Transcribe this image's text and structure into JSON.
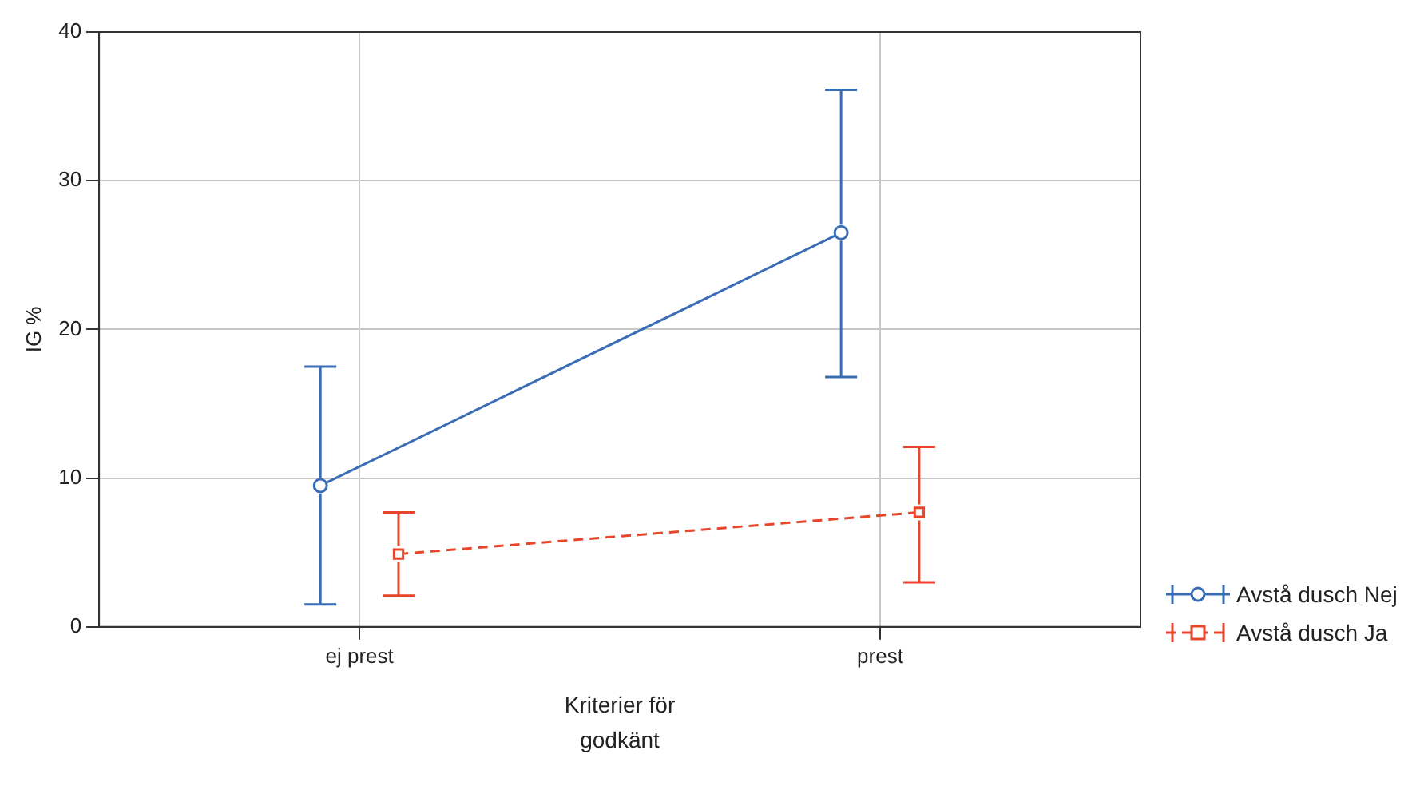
{
  "chart_data": {
    "type": "line",
    "xlabel": "Kriterier för godkänt",
    "ylabel": "IG %",
    "categories": [
      "ej prest",
      "prest"
    ],
    "ylim": [
      0,
      40
    ],
    "yticks": [
      0,
      10,
      20,
      30,
      40
    ],
    "grid": true,
    "legend": "right",
    "series": [
      {
        "name": "Avstå dusch Nej",
        "color": "#3a6db5",
        "values": [
          9.5,
          26.5
        ],
        "errors": [
          [
            1.5,
            17.5
          ],
          [
            16.8,
            36.1
          ]
        ],
        "marker": "circle",
        "line_style": "solid"
      },
      {
        "name": "Avstå dusch Ja",
        "color": "#e8462a",
        "values": [
          4.9,
          7.7
        ],
        "errors": [
          [
            2.1,
            7.7
          ],
          [
            3.0,
            12.1
          ]
        ],
        "marker": "square",
        "line_style": "dashed"
      }
    ]
  }
}
